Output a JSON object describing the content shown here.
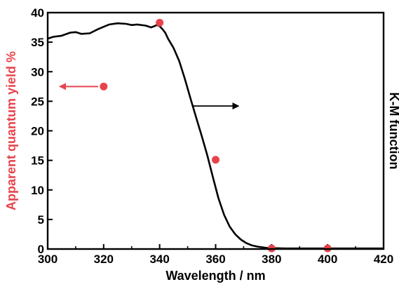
{
  "chart_data": {
    "type": "scatter",
    "title": "",
    "xlabel": "Wavelength / nm",
    "ylabel": "Apparent quantum yield %",
    "y2label": "K-M function",
    "xlim": [
      300,
      420
    ],
    "ylim": [
      0,
      40
    ],
    "x_ticks": [
      300,
      320,
      340,
      360,
      380,
      400,
      420
    ],
    "y_ticks": [
      0,
      5,
      10,
      15,
      20,
      25,
      30,
      35,
      40
    ],
    "grid": false,
    "colors": {
      "aqy": "#e8434c",
      "km": "#000000"
    },
    "series": [
      {
        "axis": "left",
        "type": "scatter",
        "x": [
          320,
          340,
          360,
          380,
          400
        ],
        "y": [
          27.5,
          38.3,
          15.1,
          0.1,
          0.1
        ]
      },
      {
        "axis": "right",
        "type": "line",
        "x": [
          300,
          302,
          305,
          308,
          310,
          312,
          315,
          318,
          320,
          322,
          325,
          328,
          330,
          332,
          335,
          337,
          338,
          339,
          340,
          341,
          342,
          343,
          345,
          347,
          349,
          351,
          353,
          355,
          357,
          359,
          361,
          363,
          365,
          367,
          369,
          371,
          373,
          375,
          378,
          380,
          385,
          390,
          400,
          410,
          420
        ],
        "y": [
          35.6,
          35.9,
          36.1,
          36.6,
          36.7,
          36.4,
          36.5,
          37.2,
          37.6,
          38.0,
          38.2,
          38.1,
          37.9,
          38.0,
          37.8,
          37.5,
          37.7,
          37.9,
          37.7,
          37.2,
          36.6,
          35.6,
          34.0,
          31.8,
          28.8,
          25.5,
          22.3,
          19.2,
          15.9,
          12.2,
          8.6,
          5.8,
          3.8,
          2.5,
          1.6,
          1.0,
          0.6,
          0.4,
          0.2,
          0.15,
          0.1,
          0.1,
          0.1,
          0.1,
          0.1
        ]
      }
    ],
    "annotations": [
      {
        "direction": "left",
        "from": [
          320,
          27.5
        ],
        "to": [
          306,
          27.5
        ],
        "color": "#e8434c"
      },
      {
        "direction": "right",
        "from": [
          352,
          24.2
        ],
        "to": [
          368,
          24.2
        ],
        "color": "#000000"
      }
    ]
  }
}
